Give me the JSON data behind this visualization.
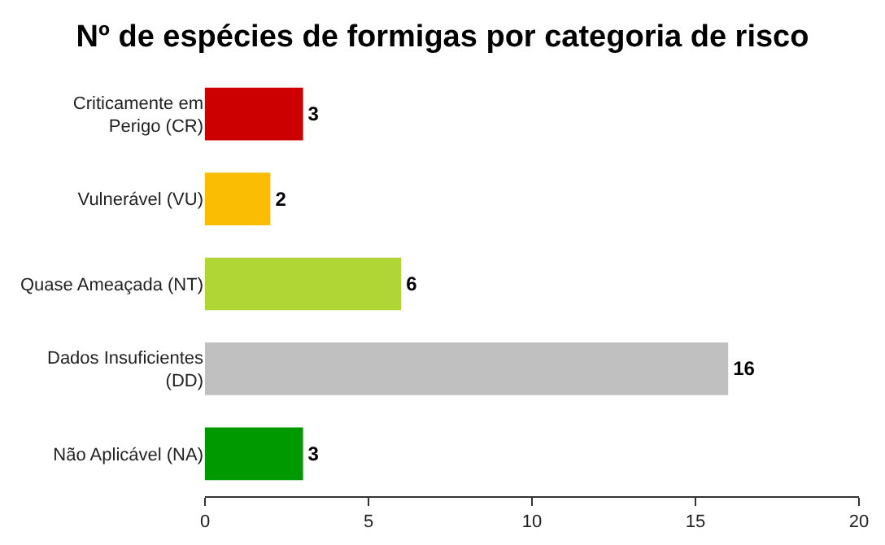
{
  "chart_data": {
    "type": "bar",
    "orientation": "horizontal",
    "title": "Nº de espécies de formigas por categoria de risco",
    "categories": [
      "Criticamente em Perigo (CR)",
      "Vulnerável (VU)",
      "Quase Ameaçada (NT)",
      "Dados Insuficientes (DD)",
      "Não Aplicável (NA)"
    ],
    "values": [
      3,
      2,
      6,
      16,
      3
    ],
    "colors": [
      "#cc0000",
      "#fbbc04",
      "#b0d636",
      "#c0c0c0",
      "#009900"
    ],
    "xlim": [
      0,
      20
    ],
    "xticks": [
      0,
      5,
      10,
      15,
      20
    ],
    "grid": false,
    "legend": false,
    "data_labels": true
  }
}
